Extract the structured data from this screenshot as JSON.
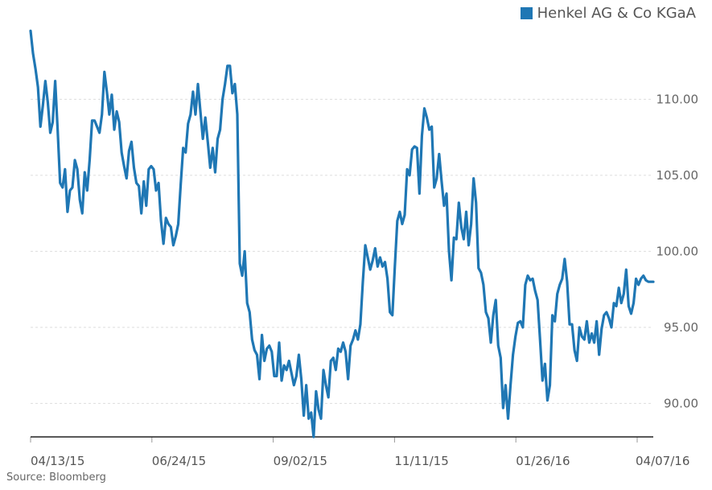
{
  "colors": {
    "series": "#1f77b4",
    "grid": "#dddddd",
    "axis": "#222222"
  },
  "legend": {
    "label": "Henkel AG & Co KGaA"
  },
  "source": "Source: Bloomberg",
  "chart_data": {
    "type": "line",
    "title": "",
    "xlabel": "",
    "ylabel": "",
    "ylim": [
      87.8,
      114.2
    ],
    "y_ticks": [
      "90.00",
      "95.00",
      "100.00",
      "105.00",
      "110.00"
    ],
    "x_ticks": [
      "04/13/15",
      "06/24/15",
      "09/02/15",
      "11/11/15",
      "01/26/16",
      "04/07/16"
    ],
    "legend_position": "top-right",
    "grid": "horizontal-dashed",
    "series": [
      {
        "name": "Henkel AG & Co KGaA",
        "values": [
          114.5,
          113.0,
          112.0,
          110.8,
          108.2,
          109.6,
          111.2,
          109.8,
          107.8,
          108.5,
          111.2,
          108.0,
          104.5,
          104.2,
          105.4,
          102.6,
          104.0,
          104.2,
          106.0,
          105.4,
          103.4,
          102.5,
          105.2,
          104.0,
          106.0,
          108.6,
          108.6,
          108.2,
          107.8,
          109.0,
          111.8,
          110.5,
          109.0,
          110.3,
          108.0,
          109.2,
          108.5,
          106.5,
          105.6,
          104.8,
          106.6,
          107.2,
          105.5,
          104.5,
          104.3,
          102.5,
          104.6,
          103.0,
          105.4,
          105.6,
          105.4,
          104.0,
          104.5,
          102.0,
          100.5,
          102.2,
          101.8,
          101.6,
          100.4,
          101.0,
          101.8,
          104.4,
          106.8,
          106.5,
          108.4,
          109.0,
          110.5,
          109.0,
          111.0,
          109.2,
          107.4,
          108.8,
          107.2,
          105.5,
          106.8,
          105.2,
          107.4,
          108.0,
          110.0,
          111.0,
          112.2,
          112.2,
          110.4,
          111.0,
          109.0,
          99.2,
          98.4,
          100.0,
          96.6,
          96.0,
          94.2,
          93.5,
          93.2,
          91.6,
          94.5,
          92.8,
          93.6,
          93.8,
          93.4,
          91.8,
          91.8,
          94.0,
          91.5,
          92.5,
          92.2,
          92.8,
          92.0,
          91.2,
          91.8,
          93.2,
          91.6,
          89.2,
          91.2,
          89.0,
          89.4,
          87.8,
          90.8,
          89.6,
          89.0,
          92.2,
          91.2,
          90.4,
          92.8,
          93.0,
          92.2,
          93.6,
          93.4,
          94.0,
          93.4,
          91.6,
          93.8,
          94.2,
          94.8,
          94.2,
          95.2,
          98.0,
          100.4,
          99.6,
          98.8,
          99.4,
          100.2,
          99.0,
          99.6,
          99.0,
          99.3,
          98.2,
          96.0,
          95.8,
          99.0,
          102.0,
          102.6,
          101.8,
          102.4,
          105.4,
          105.0,
          106.7,
          106.9,
          106.8,
          103.8,
          107.6,
          109.4,
          108.8,
          108.0,
          108.2,
          104.2,
          104.8,
          106.4,
          104.6,
          103.0,
          103.8,
          100.0,
          98.1,
          100.9,
          100.8,
          103.2,
          101.6,
          100.8,
          102.6,
          100.4,
          101.8,
          104.8,
          103.2,
          98.9,
          98.6,
          97.8,
          96.0,
          95.6,
          94.0,
          95.8,
          96.8,
          93.8,
          93.0,
          89.7,
          91.2,
          89.0,
          91.2,
          93.2,
          94.4,
          95.3,
          95.4,
          95.0,
          97.8,
          98.4,
          98.1,
          98.2,
          97.4,
          96.8,
          94.2,
          91.5,
          92.6,
          90.2,
          91.2,
          95.8,
          95.4,
          97.2,
          97.8,
          98.2,
          99.5,
          98.0,
          95.2,
          95.2,
          93.5,
          92.8,
          95.0,
          94.4,
          94.2,
          95.4,
          94.0,
          94.6,
          94.0,
          95.4,
          93.2,
          94.9,
          95.8,
          96.0,
          95.6,
          95.0,
          96.6,
          96.4,
          97.6,
          96.6,
          97.2,
          98.8,
          96.4,
          95.9,
          96.6,
          98.2,
          97.8,
          98.2,
          98.4,
          98.1,
          98.0,
          98.0,
          98.0
        ]
      }
    ]
  }
}
